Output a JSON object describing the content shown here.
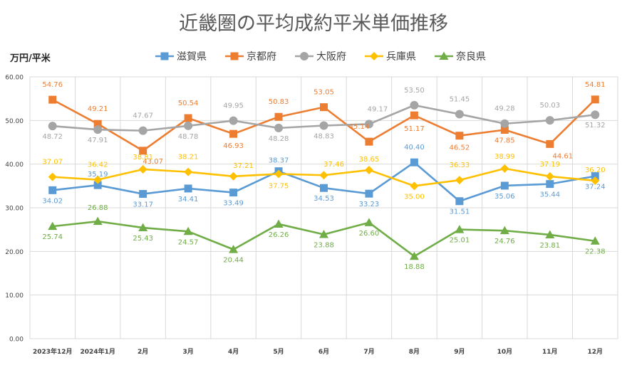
{
  "chart_data": {
    "type": "line",
    "title": "近畿圏の平均成約平米単価推移",
    "ylabel": "万円/平米",
    "xlabel": "",
    "ylim": [
      0,
      60
    ],
    "yticks": [
      "0.00",
      "10.00",
      "20.00",
      "30.00",
      "40.00",
      "50.00",
      "60.00"
    ],
    "grid": true,
    "legend_position": "top",
    "categories": [
      "2023年12月",
      "2024年1月",
      "2月",
      "3月",
      "4月",
      "5月",
      "6月",
      "7月",
      "8月",
      "9月",
      "10月",
      "11月",
      "12月"
    ],
    "series": [
      {
        "name": "滋賀県",
        "color": "#5B9BD5",
        "marker": "square",
        "values": [
          34.02,
          35.19,
          33.17,
          34.41,
          33.49,
          38.37,
          34.53,
          33.23,
          40.4,
          31.51,
          35.06,
          35.44,
          37.24
        ]
      },
      {
        "name": "京都府",
        "color": "#ED7D31",
        "marker": "square",
        "values": [
          54.76,
          49.21,
          43.07,
          50.54,
          46.93,
          50.83,
          53.05,
          45.14,
          51.17,
          46.52,
          47.85,
          44.61,
          54.81
        ]
      },
      {
        "name": "大阪府",
        "color": "#A5A5A5",
        "marker": "circle",
        "values": [
          48.72,
          47.91,
          47.67,
          48.78,
          49.95,
          48.28,
          48.83,
          49.17,
          53.5,
          51.45,
          49.28,
          50.03,
          51.32
        ]
      },
      {
        "name": "兵庫県",
        "color": "#FFC000",
        "marker": "diamond",
        "values": [
          37.07,
          36.42,
          38.81,
          38.21,
          37.21,
          37.75,
          37.46,
          38.65,
          35.0,
          36.33,
          38.99,
          37.19,
          36.2
        ]
      },
      {
        "name": "奈良県",
        "color": "#70AD47",
        "marker": "triangle",
        "values": [
          25.74,
          26.88,
          25.43,
          24.57,
          20.44,
          26.26,
          23.88,
          26.6,
          18.88,
          25.01,
          24.76,
          23.81,
          22.38
        ]
      }
    ]
  }
}
